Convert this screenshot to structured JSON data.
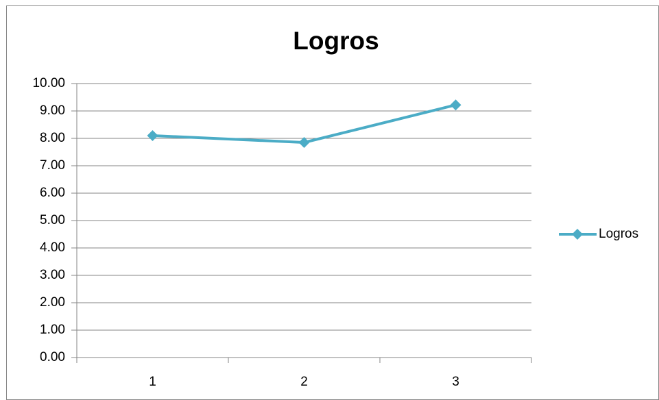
{
  "chart_data": {
    "type": "line",
    "title": "Logros",
    "categories": [
      "1",
      "2",
      "3"
    ],
    "series": [
      {
        "name": "Logros",
        "color": "#4bacc6",
        "values": [
          8.1,
          7.85,
          9.22
        ]
      }
    ],
    "ylim": [
      0,
      10
    ],
    "yticks": [
      {
        "value": 0,
        "label": "0.00"
      },
      {
        "value": 1,
        "label": "1.00"
      },
      {
        "value": 2,
        "label": "2.00"
      },
      {
        "value": 3,
        "label": "3.00"
      },
      {
        "value": 4,
        "label": "4.00"
      },
      {
        "value": 5,
        "label": "5.00"
      },
      {
        "value": 6,
        "label": "6.00"
      },
      {
        "value": 7,
        "label": "7.00"
      },
      {
        "value": 8,
        "label": "8.00"
      },
      {
        "value": 9,
        "label": "9.00"
      },
      {
        "value": 10,
        "label": "10.00"
      }
    ],
    "grid": true,
    "legend": "right"
  }
}
